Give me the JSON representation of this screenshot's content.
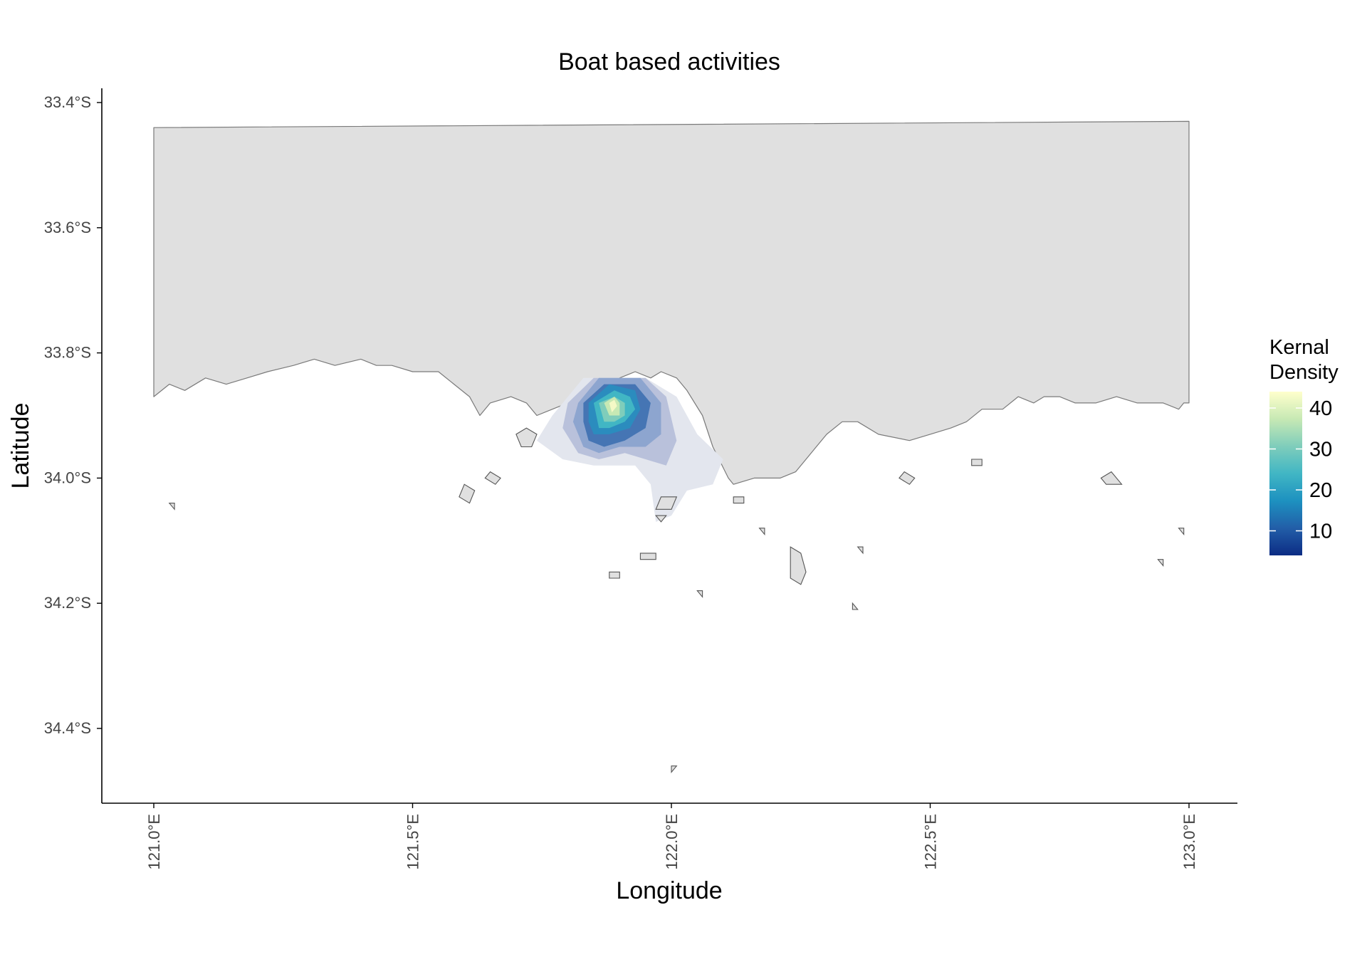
{
  "chart_data": {
    "type": "heatmap",
    "title": "Boat based activities",
    "xlabel": "Longitude",
    "ylabel": "Latitude",
    "xlim": [
      120.9,
      123.1
    ],
    "ylim": [
      -34.53,
      -33.38
    ],
    "x_ticks": [
      {
        "value": 121.0,
        "label": "121.0°E"
      },
      {
        "value": 121.5,
        "label": "121.5°E"
      },
      {
        "value": 122.0,
        "label": "122.0°E"
      },
      {
        "value": 122.5,
        "label": "122.5°E"
      },
      {
        "value": 123.0,
        "label": "123.0°E"
      }
    ],
    "y_ticks": [
      {
        "value": -33.4,
        "label": "33.4°S"
      },
      {
        "value": -33.6,
        "label": "33.6°S"
      },
      {
        "value": -33.8,
        "label": "33.8°S"
      },
      {
        "value": -34.0,
        "label": "34.0°S"
      },
      {
        "value": -34.2,
        "label": "34.2°S"
      },
      {
        "value": -34.4,
        "label": "34.4°S"
      }
    ],
    "grid": false,
    "legend": {
      "title_lines": [
        "Kernal",
        "Density"
      ],
      "placement": "right",
      "range": [
        4,
        44
      ],
      "ticks": [
        {
          "value": 10,
          "label": "10"
        },
        {
          "value": 20,
          "label": "20"
        },
        {
          "value": 30,
          "label": "30"
        },
        {
          "value": 40,
          "label": "40"
        }
      ],
      "colors": [
        "#0c2c84",
        "#225ea8",
        "#1d91c0",
        "#41b6c4",
        "#7fcdbb",
        "#c7e9b4",
        "#ffffcc"
      ]
    },
    "land_fill": "#e0e0e0",
    "land_stroke": "#7a7a7a",
    "density_hotspot": {
      "lon": 121.9,
      "lat": -33.88,
      "peak": 44
    },
    "density_levels": [
      {
        "level": 2,
        "color": "#e3e6ee",
        "polygon": [
          [
            121.78,
            -33.89
          ],
          [
            121.83,
            -33.84
          ],
          [
            121.95,
            -33.84
          ],
          [
            122.01,
            -33.87
          ],
          [
            122.05,
            -33.93
          ],
          [
            122.1,
            -33.97
          ],
          [
            122.08,
            -34.01
          ],
          [
            122.03,
            -34.02
          ],
          [
            122.0,
            -34.06
          ],
          [
            121.97,
            -34.07
          ],
          [
            121.96,
            -34.01
          ],
          [
            121.93,
            -33.98
          ],
          [
            121.85,
            -33.98
          ],
          [
            121.79,
            -33.97
          ],
          [
            121.74,
            -33.94
          ],
          [
            121.77,
            -33.9
          ]
        ]
      },
      {
        "level": 6,
        "color": "#b9c1db",
        "polygon": [
          [
            121.8,
            -33.88
          ],
          [
            121.85,
            -33.84
          ],
          [
            121.95,
            -33.84
          ],
          [
            121.99,
            -33.87
          ],
          [
            122.01,
            -33.94
          ],
          [
            121.99,
            -33.98
          ],
          [
            121.95,
            -33.97
          ],
          [
            121.91,
            -33.96
          ],
          [
            121.86,
            -33.97
          ],
          [
            121.82,
            -33.96
          ],
          [
            121.79,
            -33.92
          ]
        ]
      },
      {
        "level": 10,
        "color": "#8da5cf",
        "polygon": [
          [
            121.82,
            -33.88
          ],
          [
            121.86,
            -33.84
          ],
          [
            121.94,
            -33.84
          ],
          [
            121.98,
            -33.88
          ],
          [
            121.98,
            -33.93
          ],
          [
            121.95,
            -33.95
          ],
          [
            121.9,
            -33.95
          ],
          [
            121.86,
            -33.96
          ],
          [
            121.83,
            -33.95
          ],
          [
            121.81,
            -33.91
          ]
        ]
      },
      {
        "level": 15,
        "color": "#4575b4",
        "polygon": [
          [
            121.83,
            -33.88
          ],
          [
            121.87,
            -33.85
          ],
          [
            121.93,
            -33.85
          ],
          [
            121.96,
            -33.88
          ],
          [
            121.95,
            -33.92
          ],
          [
            121.91,
            -33.94
          ],
          [
            121.87,
            -33.95
          ],
          [
            121.84,
            -33.94
          ],
          [
            121.83,
            -33.91
          ]
        ]
      },
      {
        "level": 20,
        "color": "#2b8cbe",
        "polygon": [
          [
            121.84,
            -33.88
          ],
          [
            121.88,
            -33.85
          ],
          [
            121.93,
            -33.86
          ],
          [
            121.94,
            -33.89
          ],
          [
            121.92,
            -33.92
          ],
          [
            121.88,
            -33.93
          ],
          [
            121.85,
            -33.93
          ],
          [
            121.84,
            -33.91
          ]
        ]
      },
      {
        "level": 26,
        "color": "#41b6c4",
        "polygon": [
          [
            121.85,
            -33.88
          ],
          [
            121.89,
            -33.86
          ],
          [
            121.92,
            -33.87
          ],
          [
            121.93,
            -33.89
          ],
          [
            121.91,
            -33.91
          ],
          [
            121.88,
            -33.92
          ],
          [
            121.86,
            -33.92
          ]
        ]
      },
      {
        "level": 32,
        "color": "#7fcdbb",
        "polygon": [
          [
            121.86,
            -33.88
          ],
          [
            121.89,
            -33.87
          ],
          [
            121.91,
            -33.88
          ],
          [
            121.91,
            -33.9
          ],
          [
            121.89,
            -33.91
          ],
          [
            121.87,
            -33.91
          ]
        ]
      },
      {
        "level": 38,
        "color": "#c7e9b4",
        "polygon": [
          [
            121.87,
            -33.88
          ],
          [
            121.89,
            -33.87
          ],
          [
            121.9,
            -33.88
          ],
          [
            121.9,
            -33.9
          ],
          [
            121.88,
            -33.9
          ]
        ]
      },
      {
        "level": 42,
        "color": "#f4f9c6",
        "polygon": [
          [
            121.88,
            -33.88
          ],
          [
            121.89,
            -33.875
          ],
          [
            121.895,
            -33.885
          ],
          [
            121.885,
            -33.895
          ]
        ]
      }
    ],
    "mainland": [
      [
        121.0,
        -33.44
      ],
      [
        123.0,
        -33.43
      ],
      [
        123.0,
        -33.88
      ],
      [
        122.99,
        -33.88
      ],
      [
        122.98,
        -33.89
      ],
      [
        122.95,
        -33.88
      ],
      [
        122.9,
        -33.88
      ],
      [
        122.86,
        -33.87
      ],
      [
        122.82,
        -33.88
      ],
      [
        122.78,
        -33.88
      ],
      [
        122.75,
        -33.87
      ],
      [
        122.72,
        -33.87
      ],
      [
        122.7,
        -33.88
      ],
      [
        122.67,
        -33.87
      ],
      [
        122.64,
        -33.89
      ],
      [
        122.6,
        -33.89
      ],
      [
        122.57,
        -33.91
      ],
      [
        122.54,
        -33.92
      ],
      [
        122.5,
        -33.93
      ],
      [
        122.46,
        -33.94
      ],
      [
        122.4,
        -33.93
      ],
      [
        122.36,
        -33.91
      ],
      [
        122.33,
        -33.91
      ],
      [
        122.3,
        -33.93
      ],
      [
        122.27,
        -33.96
      ],
      [
        122.24,
        -33.99
      ],
      [
        122.21,
        -34.0
      ],
      [
        122.16,
        -34.0
      ],
      [
        122.12,
        -34.01
      ],
      [
        122.11,
        -34.0
      ],
      [
        122.08,
        -33.95
      ],
      [
        122.06,
        -33.9
      ],
      [
        122.03,
        -33.86
      ],
      [
        122.01,
        -33.84
      ],
      [
        121.98,
        -33.83
      ],
      [
        121.96,
        -33.84
      ],
      [
        121.93,
        -33.83
      ],
      [
        121.9,
        -33.84
      ],
      [
        121.87,
        -33.86
      ],
      [
        121.84,
        -33.87
      ],
      [
        121.8,
        -33.88
      ],
      [
        121.77,
        -33.89
      ],
      [
        121.74,
        -33.9
      ],
      [
        121.72,
        -33.88
      ],
      [
        121.69,
        -33.87
      ],
      [
        121.65,
        -33.88
      ],
      [
        121.63,
        -33.9
      ],
      [
        121.61,
        -33.87
      ],
      [
        121.58,
        -33.85
      ],
      [
        121.55,
        -33.83
      ],
      [
        121.52,
        -33.83
      ],
      [
        121.5,
        -33.83
      ],
      [
        121.46,
        -33.82
      ],
      [
        121.43,
        -33.82
      ],
      [
        121.4,
        -33.81
      ],
      [
        121.35,
        -33.82
      ],
      [
        121.31,
        -33.81
      ],
      [
        121.27,
        -33.82
      ],
      [
        121.22,
        -33.83
      ],
      [
        121.18,
        -33.84
      ],
      [
        121.14,
        -33.85
      ],
      [
        121.1,
        -33.84
      ],
      [
        121.06,
        -33.86
      ],
      [
        121.03,
        -33.85
      ],
      [
        121.0,
        -33.87
      ]
    ],
    "islands": [
      [
        [
          121.7,
          -33.93
        ],
        [
          121.72,
          -33.92
        ],
        [
          121.74,
          -33.93
        ],
        [
          121.73,
          -33.95
        ],
        [
          121.71,
          -33.95
        ]
      ],
      [
        [
          121.6,
          -34.01
        ],
        [
          121.62,
          -34.02
        ],
        [
          121.61,
          -34.04
        ],
        [
          121.59,
          -34.03
        ]
      ],
      [
        [
          121.65,
          -33.99
        ],
        [
          121.67,
          -34.0
        ],
        [
          121.66,
          -34.01
        ],
        [
          121.64,
          -34.0
        ]
      ],
      [
        [
          121.98,
          -34.03
        ],
        [
          122.01,
          -34.03
        ],
        [
          122.0,
          -34.05
        ],
        [
          121.97,
          -34.05
        ]
      ],
      [
        [
          121.97,
          -34.06
        ],
        [
          121.99,
          -34.06
        ],
        [
          121.98,
          -34.07
        ]
      ],
      [
        [
          122.23,
          -34.11
        ],
        [
          122.25,
          -34.12
        ],
        [
          122.26,
          -34.15
        ],
        [
          122.25,
          -34.17
        ],
        [
          122.23,
          -34.16
        ],
        [
          122.23,
          -34.13
        ]
      ],
      [
        [
          121.94,
          -34.12
        ],
        [
          121.97,
          -34.12
        ],
        [
          121.97,
          -34.13
        ],
        [
          121.94,
          -34.13
        ]
      ],
      [
        [
          122.44,
          -34.0
        ],
        [
          122.45,
          -33.99
        ],
        [
          122.47,
          -34.0
        ],
        [
          122.46,
          -34.01
        ]
      ],
      [
        [
          122.58,
          -33.97
        ],
        [
          122.6,
          -33.97
        ],
        [
          122.6,
          -33.98
        ],
        [
          122.58,
          -33.98
        ]
      ],
      [
        [
          122.83,
          -34.0
        ],
        [
          122.85,
          -33.99
        ],
        [
          122.87,
          -34.01
        ],
        [
          122.84,
          -34.01
        ]
      ],
      [
        [
          122.98,
          -34.08
        ],
        [
          122.99,
          -34.08
        ],
        [
          122.99,
          -34.09
        ]
      ],
      [
        [
          122.12,
          -34.03
        ],
        [
          122.14,
          -34.03
        ],
        [
          122.14,
          -34.04
        ],
        [
          122.12,
          -34.04
        ]
      ],
      [
        [
          121.03,
          -34.04
        ],
        [
          121.04,
          -34.04
        ],
        [
          121.04,
          -34.05
        ]
      ],
      [
        [
          122.0,
          -34.46
        ],
        [
          122.01,
          -34.46
        ],
        [
          122.0,
          -34.47
        ]
      ],
      [
        [
          122.35,
          -34.2
        ],
        [
          122.35,
          -34.21
        ],
        [
          122.36,
          -34.21
        ]
      ],
      [
        [
          122.05,
          -34.18
        ],
        [
          122.06,
          -34.18
        ],
        [
          122.06,
          -34.19
        ]
      ],
      [
        [
          122.94,
          -34.13
        ],
        [
          122.95,
          -34.13
        ],
        [
          122.95,
          -34.14
        ]
      ],
      [
        [
          122.17,
          -34.08
        ],
        [
          122.18,
          -34.08
        ],
        [
          122.18,
          -34.09
        ]
      ],
      [
        [
          121.88,
          -34.15
        ],
        [
          121.9,
          -34.15
        ],
        [
          121.9,
          -34.16
        ],
        [
          121.88,
          -34.16
        ]
      ],
      [
        [
          122.36,
          -34.11
        ],
        [
          122.37,
          -34.11
        ],
        [
          122.37,
          -34.12
        ]
      ]
    ]
  }
}
